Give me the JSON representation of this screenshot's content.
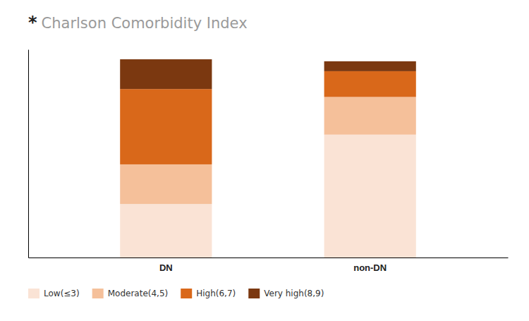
{
  "chart_data": {
    "type": "bar",
    "title": "Charlson Comorbidity Index",
    "annotations": [
      "*"
    ],
    "categories": [
      "DN",
      "non-DN"
    ],
    "series": [
      {
        "name": "Low(≤3)",
        "color": "#FAE3D5",
        "values": [
          27,
          62
        ]
      },
      {
        "name": "Moderate(4,5)",
        "color": "#F5C09A",
        "values": [
          20,
          19
        ]
      },
      {
        "name": "High(6,7)",
        "color": "#D9681A",
        "values": [
          38,
          13
        ]
      },
      {
        "name": "Very high(8,9)",
        "color": "#7B3810",
        "values": [
          15,
          5
        ]
      }
    ],
    "ylim": [
      0,
      105
    ],
    "stacked": true,
    "legend": "lower left",
    "tick_labels": "x",
    "grid": false
  }
}
